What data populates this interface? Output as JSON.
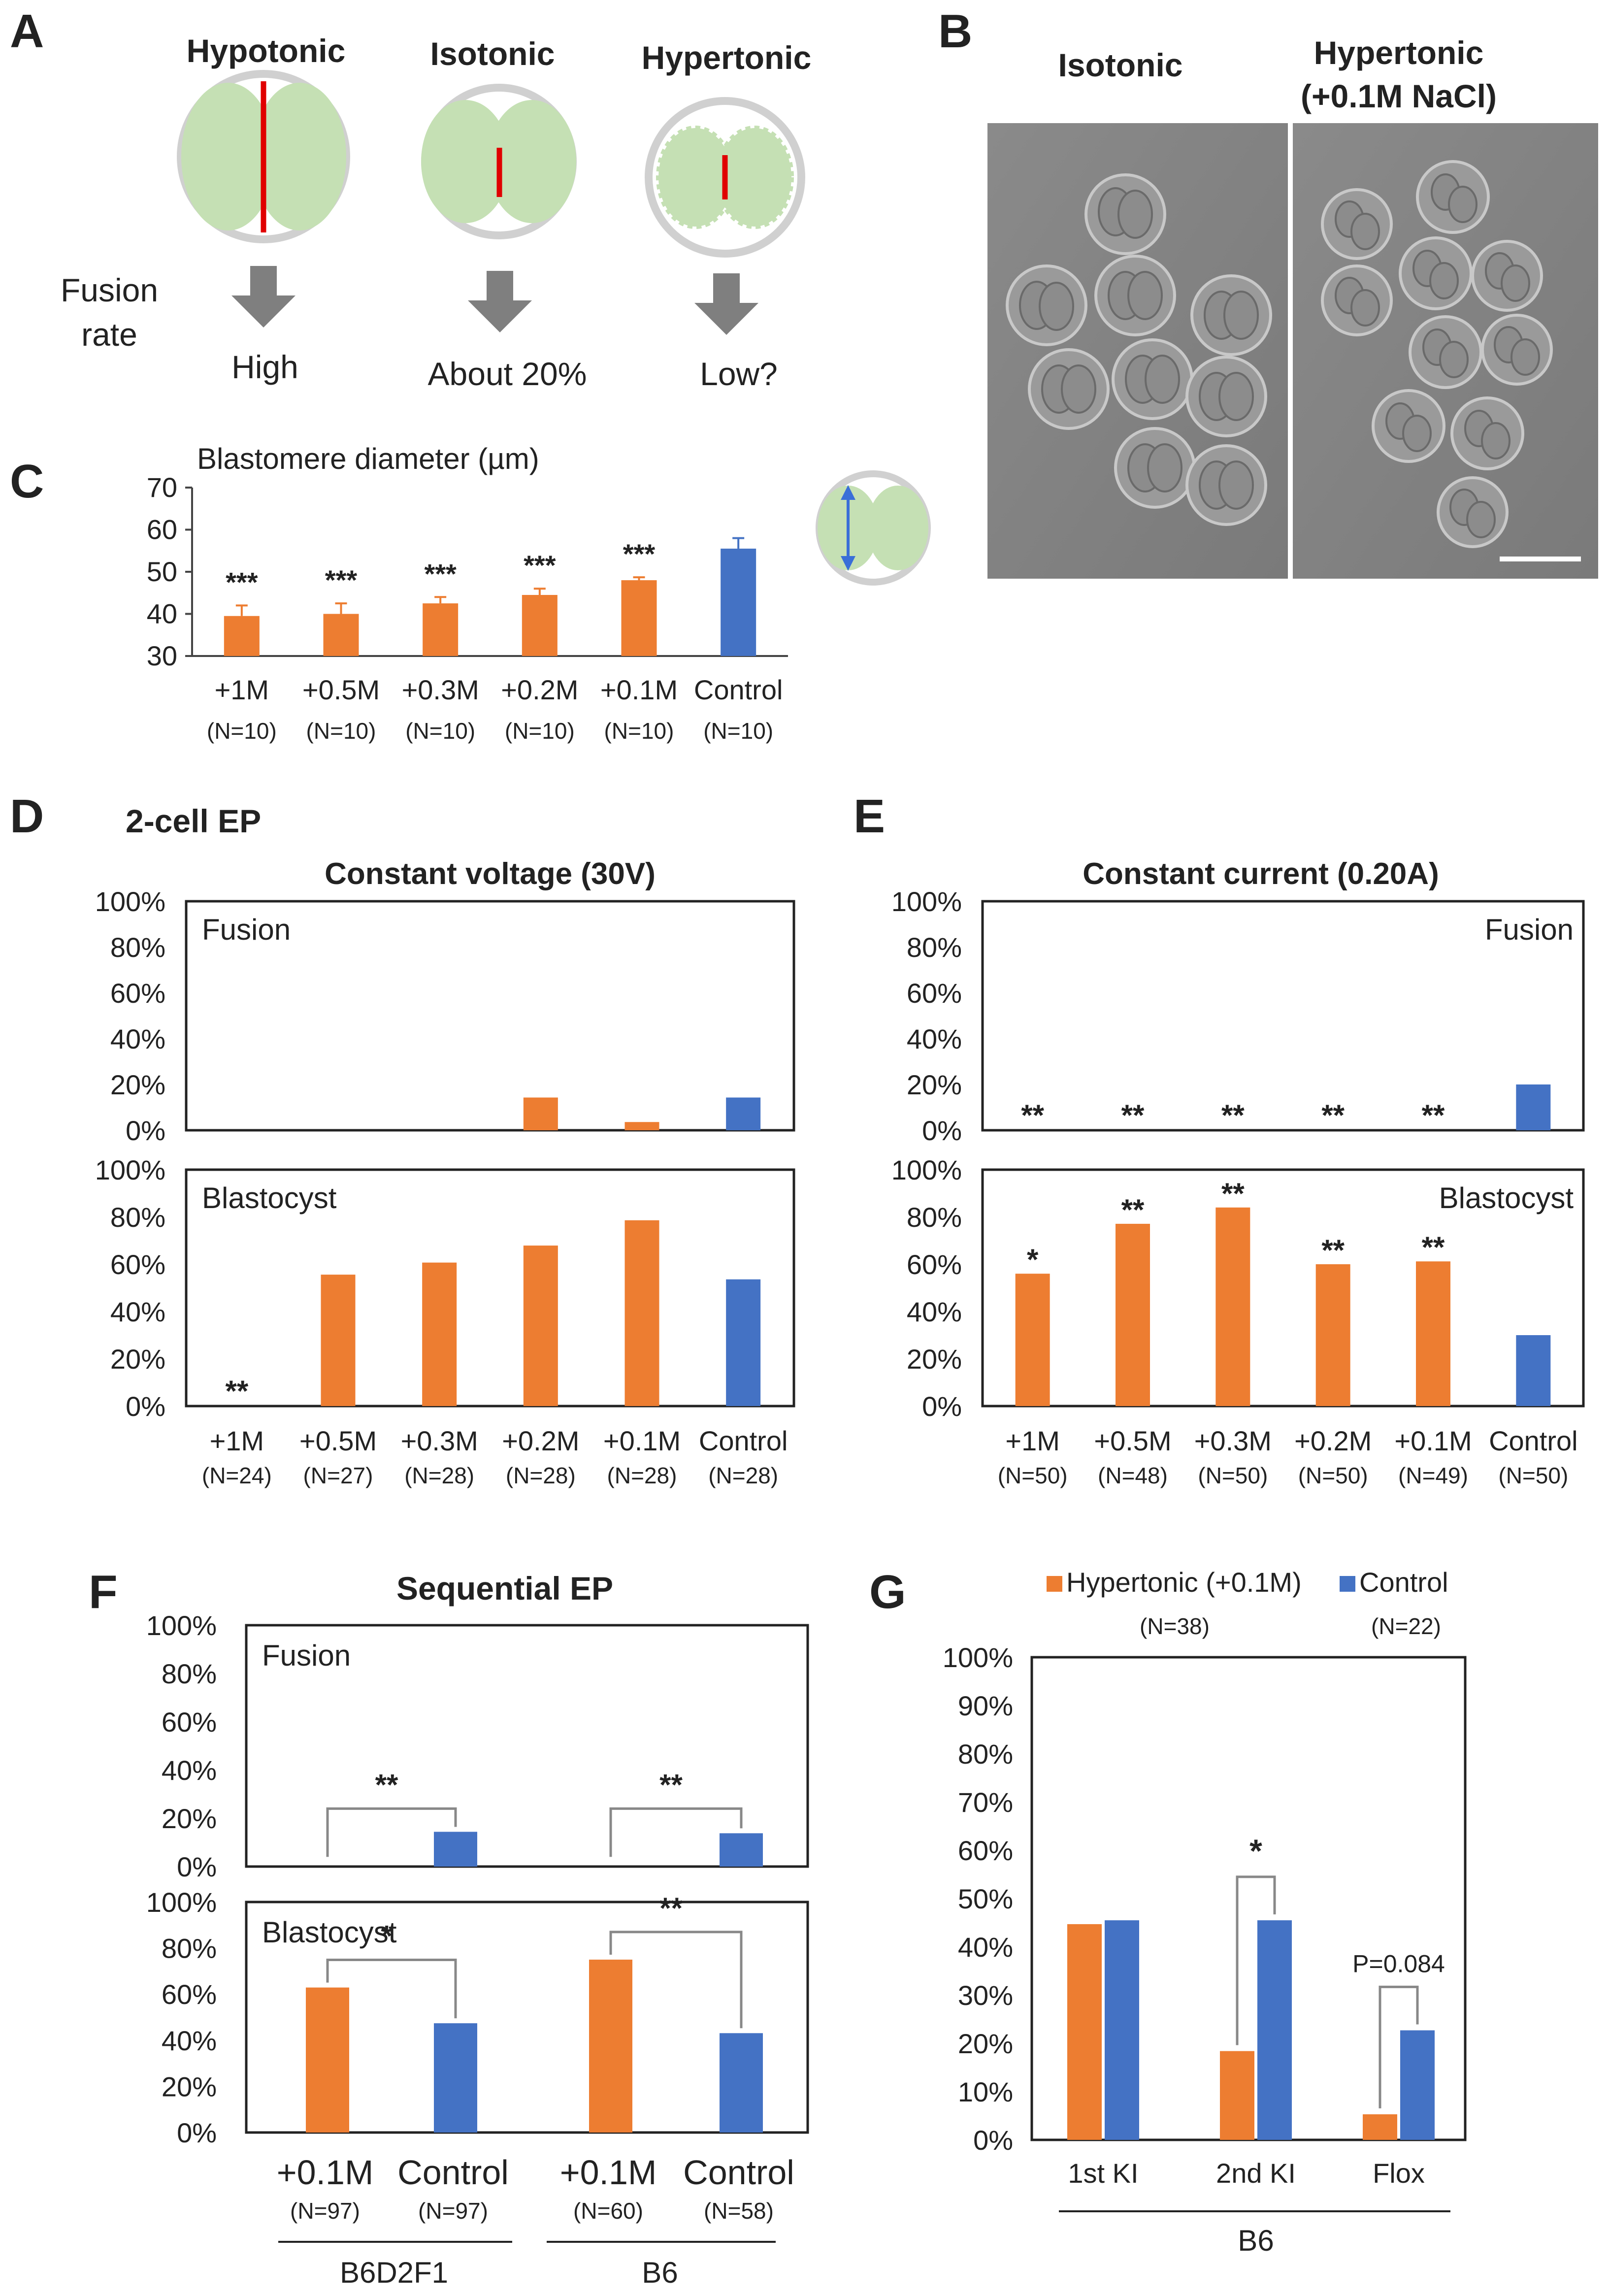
{
  "colors": {
    "orange": "#ED7D31",
    "blue": "#4472C4",
    "cell_green": "#C5E0B4",
    "zona_gray": "#D0D0D0",
    "red": "#E00000",
    "arrow_gray": "#7F7F7F"
  },
  "panels": {
    "A": {
      "letter": "A",
      "conditions": [
        "Hypotonic",
        "Isotonic",
        "Hypertonic"
      ],
      "side_label_1": "Fusion",
      "side_label_2": "rate",
      "outcomes": [
        "High",
        "About 20%",
        "Low?"
      ]
    },
    "B": {
      "letter": "B",
      "label_left": "Isotonic",
      "label_right_1": "Hypertonic",
      "label_right_2": "(+0.1M NaCl)"
    },
    "C": {
      "letter": "C"
    },
    "D": {
      "letter": "D",
      "super_title": "2-cell EP"
    },
    "E": {
      "letter": "E"
    },
    "F": {
      "letter": "F"
    },
    "G": {
      "letter": "G"
    }
  },
  "chart_data": [
    {
      "id": "C",
      "type": "bar",
      "title": "Blastomere diameter (µm)",
      "categories": [
        "+1M",
        "+0.5M",
        "+0.3M",
        "+0.2M",
        "+0.1M",
        "Control"
      ],
      "n_labels": [
        "(N=10)",
        "(N=10)",
        "(N=10)",
        "(N=10)",
        "(N=10)",
        "(N=10)"
      ],
      "values": [
        39.5,
        40,
        42.5,
        44.5,
        48,
        55.5
      ],
      "errors": [
        2.5,
        2.5,
        1.5,
        1.5,
        0.7,
        2.5
      ],
      "colors": [
        "#ED7D31",
        "#ED7D31",
        "#ED7D31",
        "#ED7D31",
        "#ED7D31",
        "#4472C4"
      ],
      "significance": [
        "***",
        "***",
        "***",
        "***",
        "***",
        ""
      ],
      "ylim": [
        30,
        70
      ],
      "yticks": [
        "30",
        "40",
        "50",
        "60",
        "70"
      ]
    },
    {
      "id": "D",
      "type": "bar",
      "title": "Constant voltage (30V)",
      "categories": [
        "+1M",
        "+0.5M",
        "+0.3M",
        "+0.2M",
        "+0.1M",
        "Control"
      ],
      "n_labels": [
        "(N=24)",
        "(N=27)",
        "(N=28)",
        "(N=28)",
        "(N=28)",
        "(N=28)"
      ],
      "yticks": [
        "0%",
        "20%",
        "40%",
        "60%",
        "80%",
        "100%"
      ],
      "ylim": [
        0,
        100
      ],
      "subplots": [
        {
          "label": "Fusion",
          "values": [
            0,
            0,
            0,
            14.3,
            3.6,
            14.3
          ],
          "significance": [
            "",
            "",
            "",
            "",
            "",
            ""
          ]
        },
        {
          "label": "Blastocyst",
          "values": [
            0,
            55.6,
            60.7,
            67.9,
            78.6,
            53.6
          ],
          "significance": [
            "**",
            "",
            "",
            "",
            "",
            ""
          ]
        }
      ]
    },
    {
      "id": "E",
      "type": "bar",
      "title": "Constant current (0.20A)",
      "categories": [
        "+1M",
        "+0.5M",
        "+0.3M",
        "+0.2M",
        "+0.1M",
        "Control"
      ],
      "n_labels": [
        "(N=50)",
        "(N=48)",
        "(N=50)",
        "(N=50)",
        "(N=49)",
        "(N=50)"
      ],
      "yticks": [
        "0%",
        "20%",
        "40%",
        "60%",
        "80%",
        "100%"
      ],
      "ylim": [
        0,
        100
      ],
      "subplots": [
        {
          "label": "Fusion",
          "values": [
            0,
            0,
            0,
            0,
            0,
            20
          ],
          "significance": [
            "**",
            "**",
            "**",
            "**",
            "**",
            ""
          ]
        },
        {
          "label": "Blastocyst",
          "values": [
            56,
            77.1,
            84,
            60,
            61.2,
            30
          ],
          "significance": [
            "*",
            "**",
            "**",
            "**",
            "**",
            ""
          ]
        }
      ]
    },
    {
      "id": "F",
      "type": "bar",
      "title": "Sequential EP",
      "categories": [
        "+0.1M",
        "Control",
        "+0.1M",
        "Control"
      ],
      "n_labels": [
        "(N=97)",
        "(N=97)",
        "(N=60)",
        "(N=58)"
      ],
      "groups": [
        "B6D2F1",
        "B6"
      ],
      "yticks": [
        "0%",
        "20%",
        "40%",
        "60%",
        "80%",
        "100%"
      ],
      "ylim": [
        0,
        100
      ],
      "subplots": [
        {
          "label": "Fusion",
          "values": [
            0,
            14.4,
            0,
            13.8
          ],
          "brackets": [
            "**",
            "**"
          ]
        },
        {
          "label": "Blastocyst",
          "values": [
            62.9,
            47.4,
            75,
            43.1
          ],
          "brackets": [
            "*",
            "**"
          ]
        }
      ]
    },
    {
      "id": "G",
      "type": "bar",
      "legend": [
        "Hypertonic (+0.1M)",
        "Control"
      ],
      "legend_n": [
        "(N=38)",
        "(N=22)"
      ],
      "categories": [
        "1st KI",
        "2nd KI",
        "Flox"
      ],
      "group": "B6",
      "series": [
        {
          "name": "Hypertonic (+0.1M)",
          "values": [
            44.7,
            18.4,
            5.3
          ]
        },
        {
          "name": "Control",
          "values": [
            45.5,
            45.5,
            22.7
          ]
        }
      ],
      "brackets": [
        "",
        "*",
        "P=0.084"
      ],
      "ylim": [
        0,
        100
      ],
      "yticks": [
        "0%",
        "10%",
        "20%",
        "30%",
        "40%",
        "50%",
        "60%",
        "70%",
        "80%",
        "90%",
        "100%"
      ]
    }
  ]
}
